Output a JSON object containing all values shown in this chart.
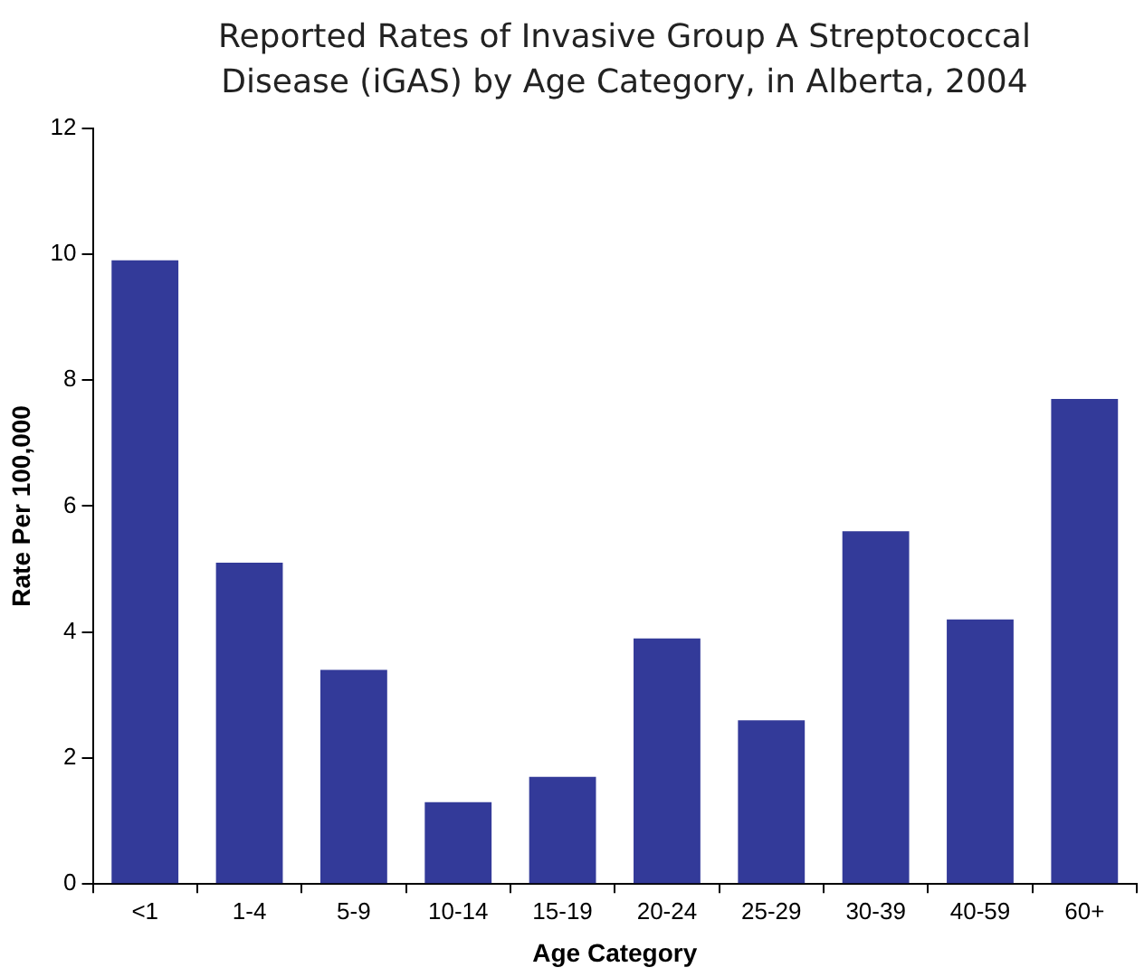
{
  "chart_data": {
    "type": "bar",
    "title": "Reported Rates of Invasive Group A Streptococcal Disease (iGAS) by Age Category, in Alberta, 2004",
    "xlabel": "Age Category",
    "ylabel": "Rate Per 100,000",
    "categories": [
      "<1",
      "1-4",
      "5-9",
      "10-14",
      "15-19",
      "20-24",
      "25-29",
      "30-39",
      "40-59",
      "60+"
    ],
    "values": [
      9.9,
      5.1,
      3.4,
      1.3,
      1.7,
      3.9,
      2.6,
      5.6,
      4.2,
      7.7
    ],
    "color": "#333a99",
    "ylim": [
      0,
      12
    ],
    "yticks": [
      0,
      2,
      4,
      6,
      8,
      10,
      12
    ],
    "grid": false,
    "legend": false
  }
}
